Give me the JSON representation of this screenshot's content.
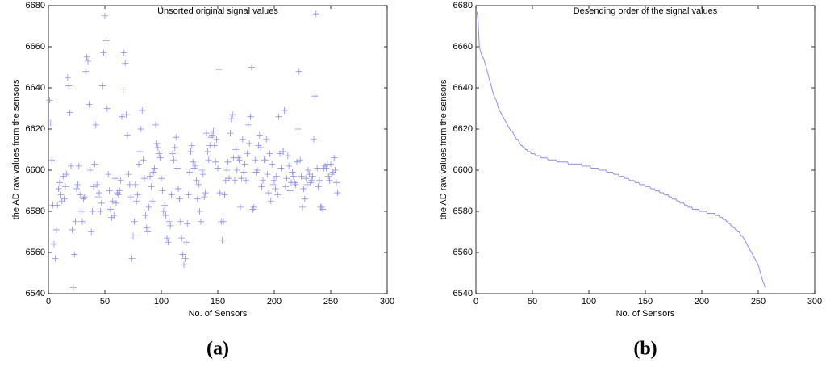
{
  "chart_data": [
    {
      "type": "scatter",
      "title": "Unsorted original signal values",
      "xlabel": "No. of Sensors",
      "ylabel": "the AD raw values from the sensors",
      "caption": "(a)",
      "marker": "+",
      "x": [
        1,
        2,
        3,
        4,
        5,
        6,
        7,
        8,
        9,
        10,
        11,
        12,
        13,
        14,
        15,
        16,
        17,
        18,
        19,
        20,
        21,
        22,
        23,
        24,
        25,
        26,
        27,
        28,
        29,
        30,
        31,
        32,
        33,
        34,
        35,
        36,
        37,
        38,
        39,
        40,
        41,
        42,
        43,
        44,
        45,
        46,
        47,
        48,
        49,
        50,
        51,
        52,
        53,
        54,
        55,
        56,
        57,
        58,
        59,
        60,
        61,
        62,
        63,
        64,
        65,
        66,
        67,
        68,
        69,
        70,
        71,
        72,
        73,
        74,
        75,
        76,
        77,
        78,
        79,
        80,
        81,
        82,
        83,
        84,
        85,
        86,
        87,
        88,
        89,
        90,
        91,
        92,
        93,
        94,
        95,
        96,
        97,
        98,
        99,
        100,
        101,
        102,
        103,
        104,
        105,
        106,
        107,
        108,
        109,
        110,
        111,
        112,
        113,
        114,
        115,
        116,
        117,
        118,
        119,
        120,
        121,
        122,
        123,
        124,
        125,
        126,
        127,
        128,
        129,
        130,
        131,
        132,
        133,
        134,
        135,
        136,
        137,
        138,
        139,
        140,
        141,
        142,
        143,
        144,
        145,
        146,
        147,
        148,
        149,
        150,
        151,
        152,
        153,
        154,
        155,
        156,
        157,
        158,
        159,
        160,
        161,
        162,
        163,
        164,
        165,
        166,
        167,
        168,
        169,
        170,
        171,
        172,
        173,
        174,
        175,
        176,
        177,
        178,
        179,
        180,
        181,
        182,
        183,
        184,
        185,
        186,
        187,
        188,
        189,
        190,
        191,
        192,
        193,
        194,
        195,
        196,
        197,
        198,
        199,
        200,
        201,
        202,
        203,
        204,
        205,
        206,
        207,
        208,
        209,
        210,
        211,
        212,
        213,
        214,
        215,
        216,
        217,
        218,
        219,
        220,
        221,
        222,
        223,
        224,
        225,
        226,
        227,
        228,
        229,
        230,
        231,
        232,
        233,
        234,
        235,
        236,
        237,
        238,
        239,
        240,
        241,
        242,
        243,
        244,
        245,
        246,
        247,
        248,
        249,
        250,
        251,
        252,
        253,
        254,
        255,
        256
      ],
      "series": [
        {
          "color": "#8c8cff",
          "values": [
            6634,
            6623,
            6605,
            6583,
            6564,
            6557,
            6571,
            6583,
            6591,
            6594,
            6588,
            6585,
            6597,
            6586,
            6592,
            6598,
            6645,
            6641,
            6628,
            6602,
            6571,
            6543,
            6559,
            6575,
            6591,
            6593,
            6602,
            6588,
            6580,
            6575,
            6586,
            6587,
            6648,
            6655,
            6653,
            6632,
            6600,
            6570,
            6580,
            6592,
            6603,
            6622,
            6593,
            6587,
            6589,
            6580,
            6584,
            6641,
            6657,
            6675,
            6663,
            6630,
            6598,
            6590,
            6581,
            6577,
            6585,
            6578,
            6596,
            6584,
            6589,
            6588,
            6590,
            6595,
            6626,
            6639,
            6657,
            6652,
            6627,
            6617,
            6598,
            6593,
            6587,
            6557,
            6568,
            6575,
            6593,
            6585,
            6588,
            6603,
            6609,
            6620,
            6629,
            6605,
            6596,
            6578,
            6572,
            6570,
            6582,
            6597,
            6592,
            6585,
            6599,
            6601,
            6622,
            6613,
            6611,
            6608,
            6606,
            6596,
            6590,
            6580,
            6583,
            6578,
            6567,
            6565,
            6575,
            6573,
            6588,
            6608,
            6605,
            6611,
            6616,
            6601,
            6591,
            6586,
            6575,
            6567,
            6559,
            6554,
            6557,
            6565,
            6574,
            6588,
            6599,
            6609,
            6612,
            6604,
            6601,
            6602,
            6595,
            6586,
            6593,
            6580,
            6575,
            6600,
            6598,
            6587,
            6589,
            6618,
            6609,
            6605,
            6612,
            6616,
            6617,
            6619,
            6612,
            6604,
            6615,
            6601,
            6649,
            6589,
            6575,
            6566,
            6575,
            6588,
            6595,
            6600,
            6604,
            6596,
            6618,
            6625,
            6627,
            6606,
            6595,
            6610,
            6600,
            6606,
            6605,
            6582,
            6596,
            6615,
            6599,
            6603,
            6595,
            6608,
            6622,
            6613,
            6626,
            6650,
            6581,
            6582,
            6605,
            6599,
            6600,
            6612,
            6617,
            6611,
            6592,
            6595,
            6605,
            6605,
            6615,
            6598,
            6589,
            6608,
            6585,
            6603,
            6593,
            6595,
            6591,
            6597,
            6588,
            6626,
            6608,
            6601,
            6609,
            6609,
            6629,
            6592,
            6596,
            6607,
            6602,
            6590,
            6594,
            6599,
            6597,
            6594,
            6593,
            6604,
            6620,
            6648,
            6605,
            6597,
            6582,
            6591,
            6586,
            6596,
            6593,
            6600,
            6598,
            6594,
            6595,
            6597,
            6615,
            6636,
            6676,
            6601,
            6592,
            6595,
            6582,
            6582,
            6581,
            6601,
            6602,
            6601,
            6603,
            6597,
            6595,
            6603,
            6598,
            6599,
            6606,
            6600,
            6594,
            6589
          ]
        }
      ],
      "xlim": [
        0,
        300
      ],
      "ylim": [
        6540,
        6680
      ],
      "xticks": [
        0,
        50,
        100,
        150,
        200,
        250,
        300
      ],
      "yticks": [
        6540,
        6560,
        6580,
        6600,
        6620,
        6640,
        6660,
        6680
      ]
    },
    {
      "type": "line",
      "title": "Desending order of the signal values",
      "xlabel": "No. of Sensors",
      "ylabel": "the AD raw values from the sensors",
      "caption": "(b)",
      "x": [
        1,
        2,
        3,
        4,
        5,
        6,
        7,
        8,
        9,
        10,
        11,
        12,
        13,
        14,
        15,
        16,
        17,
        18,
        19,
        20,
        21,
        22,
        23,
        24,
        25,
        26,
        27,
        28,
        29,
        30,
        31,
        32,
        33,
        34,
        35,
        36,
        37,
        38,
        39,
        40,
        41,
        42,
        43,
        44,
        45,
        46,
        47,
        48,
        49,
        50,
        51,
        52,
        53,
        54,
        55,
        56,
        57,
        58,
        59,
        60,
        61,
        62,
        63,
        64,
        65,
        66,
        67,
        68,
        69,
        70,
        71,
        72,
        73,
        74,
        75,
        76,
        77,
        78,
        79,
        80,
        81,
        82,
        83,
        84,
        85,
        86,
        87,
        88,
        89,
        90,
        91,
        92,
        93,
        94,
        95,
        96,
        97,
        98,
        99,
        100,
        101,
        102,
        103,
        104,
        105,
        106,
        107,
        108,
        109,
        110,
        111,
        112,
        113,
        114,
        115,
        116,
        117,
        118,
        119,
        120,
        121,
        122,
        123,
        124,
        125,
        126,
        127,
        128,
        129,
        130,
        131,
        132,
        133,
        134,
        135,
        136,
        137,
        138,
        139,
        140,
        141,
        142,
        143,
        144,
        145,
        146,
        147,
        148,
        149,
        150,
        151,
        152,
        153,
        154,
        155,
        156,
        157,
        158,
        159,
        160,
        161,
        162,
        163,
        164,
        165,
        166,
        167,
        168,
        169,
        170,
        171,
        172,
        173,
        174,
        175,
        176,
        177,
        178,
        179,
        180,
        181,
        182,
        183,
        184,
        185,
        186,
        187,
        188,
        189,
        190,
        191,
        192,
        193,
        194,
        195,
        196,
        197,
        198,
        199,
        200,
        201,
        202,
        203,
        204,
        205,
        206,
        207,
        208,
        209,
        210,
        211,
        212,
        213,
        214,
        215,
        216,
        217,
        218,
        219,
        220,
        221,
        222,
        223,
        224,
        225,
        226,
        227,
        228,
        229,
        230,
        231,
        232,
        233,
        234,
        235,
        236,
        237,
        238,
        239,
        240,
        241,
        242,
        243,
        244,
        245,
        246,
        247,
        248,
        249,
        250,
        251,
        252,
        253,
        254,
        255,
        256
      ],
      "series": [
        {
          "color": "#8c8cff",
          "values": [
            6677,
            6672,
            6660,
            6658,
            6656,
            6655,
            6654,
            6652,
            6650,
            6648,
            6646,
            6644,
            6642,
            6640,
            6638,
            6636,
            6635,
            6634,
            6632,
            6630,
            6629,
            6628,
            6627,
            6626,
            6625,
            6624,
            6623,
            6622,
            6621,
            6620,
            6619,
            6619,
            6618,
            6617,
            6616,
            6615,
            6615,
            6614,
            6613,
            6612,
            6612,
            6611,
            6611,
            6610,
            6610,
            6609,
            6609,
            6609,
            6608,
            6608,
            6608,
            6608,
            6607,
            6607,
            6607,
            6607,
            6607,
            6606,
            6606,
            6606,
            6606,
            6606,
            6606,
            6605,
            6605,
            6605,
            6605,
            6605,
            6605,
            6605,
            6605,
            6604,
            6604,
            6604,
            6604,
            6604,
            6604,
            6604,
            6604,
            6604,
            6604,
            6603,
            6603,
            6603,
            6603,
            6603,
            6603,
            6603,
            6603,
            6603,
            6603,
            6603,
            6603,
            6602,
            6602,
            6602,
            6602,
            6602,
            6602,
            6602,
            6602,
            6601,
            6601,
            6601,
            6601,
            6601,
            6601,
            6601,
            6600,
            6600,
            6600,
            6600,
            6600,
            6600,
            6600,
            6599,
            6599,
            6599,
            6599,
            6599,
            6599,
            6598,
            6598,
            6598,
            6598,
            6598,
            6597,
            6597,
            6597,
            6597,
            6597,
            6596,
            6596,
            6596,
            6596,
            6595,
            6595,
            6595,
            6595,
            6595,
            6594,
            6594,
            6594,
            6594,
            6593,
            6593,
            6593,
            6593,
            6593,
            6592,
            6592,
            6592,
            6592,
            6592,
            6591,
            6591,
            6591,
            6591,
            6590,
            6590,
            6590,
            6590,
            6589,
            6589,
            6589,
            6589,
            6588,
            6588,
            6588,
            6588,
            6587,
            6587,
            6587,
            6586,
            6586,
            6586,
            6586,
            6585,
            6585,
            6585,
            6584,
            6584,
            6584,
            6584,
            6583,
            6583,
            6583,
            6582,
            6582,
            6582,
            6582,
            6581,
            6581,
            6581,
            6581,
            6581,
            6581,
            6580,
            6580,
            6580,
            6580,
            6580,
            6580,
            6580,
            6579,
            6579,
            6579,
            6579,
            6579,
            6579,
            6579,
            6578,
            6578,
            6578,
            6578,
            6577,
            6577,
            6577,
            6576,
            6576,
            6576,
            6575,
            6575,
            6574,
            6574,
            6573,
            6573,
            6572,
            6572,
            6571,
            6571,
            6570,
            6570,
            6569,
            6568,
            6568,
            6567,
            6566,
            6565,
            6564,
            6563,
            6562,
            6561,
            6560,
            6559,
            6558,
            6557,
            6556,
            6555,
            6554,
            6552,
            6550,
            6548,
            6546,
            6545,
            6543
          ]
        }
      ],
      "xlim": [
        0,
        300
      ],
      "ylim": [
        6540,
        6680
      ],
      "xticks": [
        0,
        50,
        100,
        150,
        200,
        250,
        300
      ],
      "yticks": [
        6540,
        6560,
        6580,
        6600,
        6620,
        6640,
        6660,
        6680
      ]
    }
  ]
}
